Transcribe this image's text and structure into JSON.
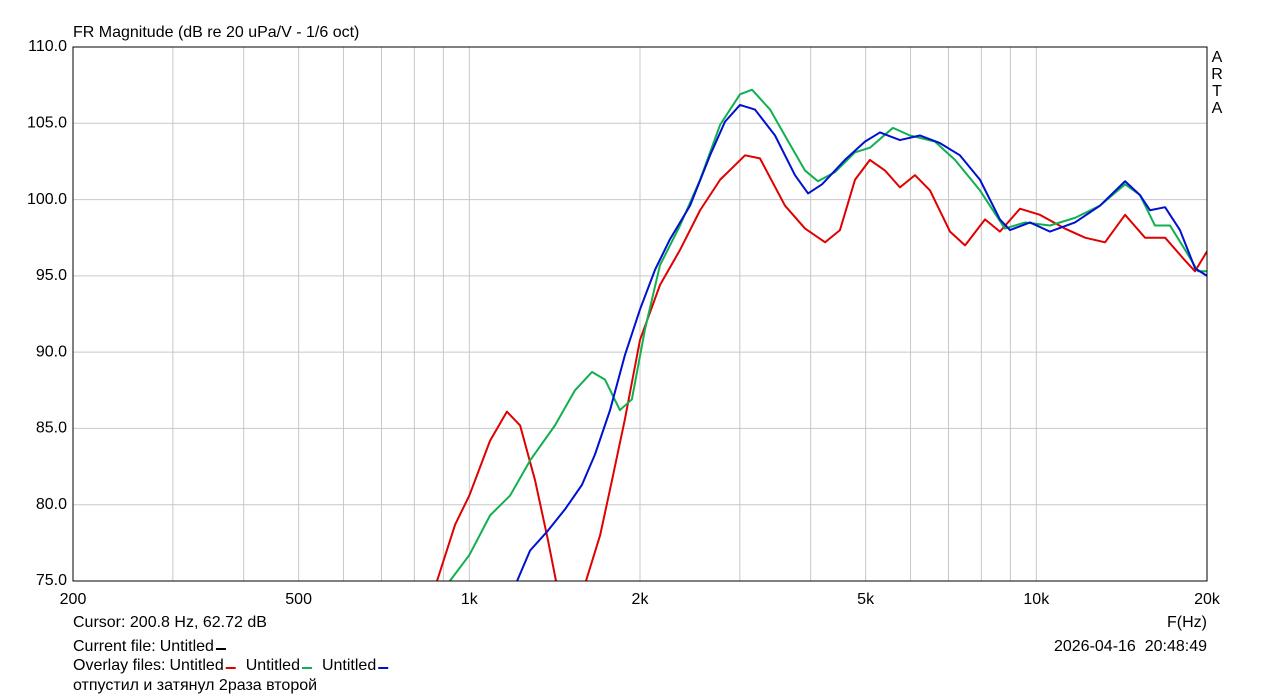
{
  "chart_data": {
    "type": "line",
    "title": "FR Magnitude (dB re 20 uPa/V - 1/6 oct)",
    "watermark": "ARTA",
    "x_label": "F(Hz)",
    "log_x": true,
    "grid": true,
    "xlim": [
      200,
      20000
    ],
    "xticks": [
      200,
      500,
      {
        "value": 1000,
        "label": "1k"
      },
      {
        "value": 2000,
        "label": "2k"
      },
      {
        "value": 5000,
        "label": "5k"
      },
      {
        "value": 10000,
        "label": "10k"
      },
      {
        "value": 20000,
        "label": "20k"
      }
    ],
    "xminor": [
      300,
      400,
      600,
      700,
      800,
      900,
      3000,
      4000,
      6000,
      7000,
      8000,
      9000
    ],
    "ylim": [
      75,
      110
    ],
    "yticks": [
      {
        "value": 75,
        "label": "75.0"
      },
      {
        "value": 80,
        "label": "80.0"
      },
      {
        "value": 85,
        "label": "85.0"
      },
      {
        "value": 90,
        "label": "90.0"
      },
      {
        "value": 95,
        "label": "95.0"
      },
      {
        "value": 100,
        "label": "100.0"
      },
      {
        "value": 105,
        "label": "105.0"
      },
      {
        "value": 110,
        "label": "110.0"
      }
    ],
    "cursor": "Cursor: 200.8 Hz, 62.72 dB",
    "current_label": "Current file:",
    "current_file": "Untitled",
    "current_color": "#000000",
    "overlay_label": "Overlay files:",
    "timestamp": "2026-04-16  20:48:49",
    "comment": "отпустил и затянул 2раза второй",
    "series": [
      {
        "name": "Untitled",
        "color": "#e00000",
        "x": [
          877,
          944,
          1000,
          1088,
          1165,
          1229,
          1306,
          1376,
          1422,
          1500,
          1606,
          1701,
          1785,
          1881,
          2000,
          2169,
          2353,
          2553,
          2769,
          3064,
          3255,
          3604,
          3910,
          4242,
          4505,
          4789,
          5088,
          5410,
          5748,
          6110,
          6494,
          7043,
          7488,
          8120,
          8625,
          9358,
          10150,
          11230,
          12190,
          13220,
          14340,
          15550,
          16870,
          18300,
          19050,
          20000
        ],
        "values": [
          75,
          78.7,
          80.6,
          84.2,
          86.1,
          85.2,
          81.6,
          77.7,
          75,
          null,
          75,
          78.0,
          81.6,
          85.6,
          90.8,
          94.4,
          96.7,
          99.3,
          101.3,
          102.9,
          102.7,
          99.6,
          98.1,
          97.2,
          98.0,
          101.3,
          102.6,
          101.9,
          100.8,
          101.6,
          100.6,
          97.9,
          97.0,
          98.7,
          97.9,
          99.4,
          99.0,
          98.1,
          97.5,
          97.2,
          99.0,
          97.5,
          97.5,
          96.0,
          95.3,
          96.6
        ]
      },
      {
        "name": "Untitled",
        "color": "#10b050",
        "x": [
          924,
          1000,
          1088,
          1180,
          1280,
          1416,
          1536,
          1646,
          1735,
          1843,
          1935,
          2041,
          2169,
          2353,
          2553,
          2769,
          3002,
          3152,
          3392,
          3679,
          3910,
          4120,
          4415,
          4789,
          5088,
          5586,
          5987,
          6626,
          7187,
          7955,
          8801,
          9554,
          10570,
          11700,
          12950,
          14340,
          15230,
          16190,
          17210,
          18300,
          19280,
          20000
        ],
        "values": [
          75,
          76.7,
          79.3,
          80.6,
          82.9,
          85.2,
          87.5,
          88.7,
          88.2,
          86.2,
          86.9,
          91.5,
          95.7,
          98.3,
          101.3,
          104.9,
          106.9,
          107.2,
          105.9,
          103.6,
          101.9,
          101.2,
          101.8,
          103.1,
          103.4,
          104.7,
          104.2,
          103.8,
          102.6,
          100.6,
          98.1,
          98.5,
          98.3,
          98.8,
          99.6,
          101.0,
          100.3,
          98.3,
          98.3,
          96.7,
          95.3,
          95.3
        ]
      },
      {
        "name": "Untitled",
        "color": "#0010d0",
        "x": [
          1214,
          1280,
          1376,
          1475,
          1580,
          1666,
          1771,
          1881,
          2000,
          2126,
          2259,
          2451,
          2658,
          2824,
          3002,
          3190,
          3461,
          3753,
          3958,
          4189,
          4597,
          4986,
          5300,
          5748,
          6231,
          6761,
          7334,
          7955,
          8625,
          8987,
          9748,
          10570,
          11700,
          12950,
          14340,
          15230,
          15870,
          16870,
          17920,
          19050,
          20000
        ],
        "values": [
          75,
          77.0,
          78.3,
          79.7,
          81.3,
          83.3,
          86.2,
          89.8,
          92.8,
          95.4,
          97.4,
          99.6,
          102.9,
          105.1,
          106.2,
          105.9,
          104.2,
          101.6,
          100.4,
          101.0,
          102.6,
          103.8,
          104.4,
          103.9,
          104.2,
          103.7,
          102.9,
          101.3,
          98.7,
          98.0,
          98.5,
          97.9,
          98.5,
          99.6,
          101.2,
          100.3,
          99.3,
          99.5,
          98.0,
          95.5,
          95.0
        ]
      }
    ]
  }
}
